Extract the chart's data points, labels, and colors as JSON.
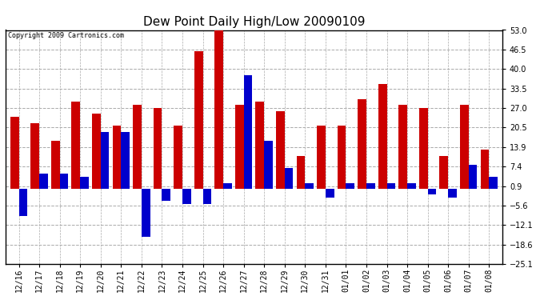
{
  "title": "Dew Point Daily High/Low 20090109",
  "copyright": "Copyright 2009 Cartronics.com",
  "dates": [
    "12/16",
    "12/17",
    "12/18",
    "12/19",
    "12/20",
    "12/21",
    "12/22",
    "12/23",
    "12/24",
    "12/25",
    "12/26",
    "12/27",
    "12/28",
    "12/29",
    "12/30",
    "12/31",
    "01/01",
    "01/02",
    "01/03",
    "01/04",
    "01/05",
    "01/06",
    "01/07",
    "01/08"
  ],
  "highs": [
    24,
    22,
    16,
    29,
    25,
    21,
    28,
    27,
    21,
    46,
    54,
    28,
    29,
    26,
    11,
    21,
    21,
    30,
    35,
    28,
    27,
    11,
    28,
    13
  ],
  "lows": [
    -9,
    5,
    5,
    4,
    19,
    19,
    -16,
    -4,
    -5,
    -5,
    2,
    38,
    16,
    7,
    2,
    -3,
    2,
    2,
    2,
    2,
    -2,
    -3,
    8,
    4
  ],
  "high_color": "#cc0000",
  "low_color": "#0000cc",
  "bg_color": "#ffffff",
  "grid_color": "#aaaaaa",
  "border_color": "#000000",
  "ylim": [
    -25.1,
    53.0
  ],
  "yticks": [
    -25.1,
    -18.6,
    -12.1,
    -5.6,
    0.9,
    7.4,
    13.9,
    20.5,
    27.0,
    33.5,
    40.0,
    46.5,
    53.0
  ],
  "bar_width": 0.42,
  "figsize": [
    6.9,
    3.75
  ],
  "dpi": 100
}
